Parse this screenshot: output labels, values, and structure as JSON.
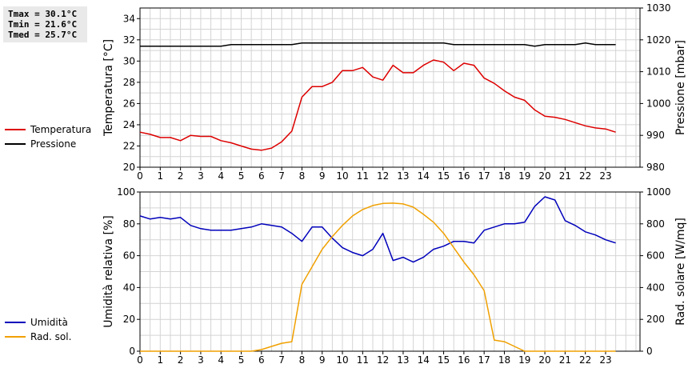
{
  "stats": {
    "tmax": "Tmax = 30.1°C",
    "tmin": "Tmin = 21.6°C",
    "tmed": "Tmed = 25.7°C"
  },
  "colors": {
    "temperature": "#dd0000",
    "pressure": "#000000",
    "humidity": "#0000bb",
    "solar": "#f0a000",
    "grid": "#d4d4d4"
  },
  "chart_data": [
    {
      "type": "line",
      "title": "",
      "x": [
        0,
        0.5,
        1,
        1.5,
        2,
        2.5,
        3,
        3.5,
        4,
        4.5,
        5,
        5.5,
        6,
        6.5,
        7,
        7.5,
        8,
        8.5,
        9,
        9.5,
        10,
        10.5,
        11,
        11.5,
        12,
        12.5,
        13,
        13.5,
        14,
        14.5,
        15,
        15.5,
        16,
        16.5,
        17,
        17.5,
        18,
        18.5,
        19,
        19.5,
        20,
        20.5,
        21,
        21.5,
        22,
        22.5,
        23,
        23.5
      ],
      "xticks": [
        "0",
        "1",
        "2",
        "3",
        "4",
        "5",
        "6",
        "7",
        "8",
        "9",
        "10",
        "11",
        "12",
        "13",
        "14",
        "15",
        "16",
        "17",
        "18",
        "19",
        "20",
        "21",
        "22",
        "23"
      ],
      "xlim": [
        0,
        24.7
      ],
      "ylabel": "Temperatura [°C]",
      "ylim": [
        20,
        35
      ],
      "yticks": [
        20,
        22,
        24,
        26,
        28,
        30,
        32,
        34
      ],
      "y2label": "Pressione [mbar]",
      "y2lim": [
        980,
        1030
      ],
      "y2ticks": [
        980,
        990,
        1000,
        1010,
        1020,
        1030
      ],
      "series": [
        {
          "name": "Temperatura",
          "axis": "left",
          "values": [
            23.3,
            23.1,
            22.8,
            22.8,
            22.5,
            23.0,
            22.9,
            22.9,
            22.5,
            22.3,
            22.0,
            21.7,
            21.6,
            21.8,
            22.4,
            23.4,
            26.6,
            27.6,
            27.6,
            28.0,
            29.1,
            29.1,
            29.4,
            28.5,
            28.2,
            29.6,
            28.9,
            28.9,
            29.6,
            30.1,
            29.9,
            29.1,
            29.8,
            29.6,
            28.4,
            27.9,
            27.2,
            26.6,
            26.3,
            25.4,
            24.8,
            24.7,
            24.5,
            24.2,
            23.9,
            23.7,
            23.6,
            23.3
          ]
        },
        {
          "name": "Pressione",
          "axis": "right",
          "values": [
            1018,
            1018,
            1018,
            1018,
            1018,
            1018,
            1018,
            1018,
            1018,
            1018.5,
            1018.5,
            1018.5,
            1018.5,
            1018.5,
            1018.5,
            1018.5,
            1019,
            1019,
            1019,
            1019,
            1019,
            1019,
            1019,
            1019,
            1019,
            1019,
            1019,
            1019,
            1019,
            1019,
            1019,
            1018.5,
            1018.5,
            1018.5,
            1018.5,
            1018.5,
            1018.5,
            1018.5,
            1018.5,
            1018,
            1018.5,
            1018.5,
            1018.5,
            1018.5,
            1019,
            1018.5,
            1018.5,
            1018.5
          ]
        }
      ]
    },
    {
      "type": "line",
      "title": "",
      "x": [
        0,
        0.5,
        1,
        1.5,
        2,
        2.5,
        3,
        3.5,
        4,
        4.5,
        5,
        5.5,
        6,
        6.5,
        7,
        7.5,
        8,
        8.5,
        9,
        9.5,
        10,
        10.5,
        11,
        11.5,
        12,
        12.5,
        13,
        13.5,
        14,
        14.5,
        15,
        15.5,
        16,
        16.5,
        17,
        17.5,
        18,
        18.5,
        19,
        19.5,
        20,
        20.5,
        21,
        21.5,
        22,
        22.5,
        23,
        23.5
      ],
      "xticks": [
        "0",
        "1",
        "2",
        "3",
        "4",
        "5",
        "6",
        "7",
        "8",
        "9",
        "10",
        "11",
        "12",
        "13",
        "14",
        "15",
        "16",
        "17",
        "18",
        "19",
        "20",
        "21",
        "22",
        "23"
      ],
      "xlim": [
        0,
        24.7
      ],
      "ylabel": "Umidità relativa [%]",
      "ylim": [
        0,
        100
      ],
      "yticks": [
        0,
        20,
        40,
        60,
        80,
        100
      ],
      "y2label": "Rad. solare [W/mq]",
      "y2lim": [
        0,
        1000
      ],
      "y2ticks": [
        0,
        200,
        400,
        600,
        800,
        1000
      ],
      "series": [
        {
          "name": "Umidità",
          "axis": "left",
          "values": [
            85,
            83,
            84,
            83,
            84,
            79,
            77,
            76,
            76,
            76,
            77,
            78,
            80,
            79,
            78,
            74,
            69,
            78,
            78,
            71,
            65,
            62,
            60,
            64,
            74,
            57,
            59,
            56,
            59,
            64,
            66,
            69,
            69,
            68,
            76,
            78,
            80,
            80,
            81,
            91,
            97,
            95,
            82,
            79,
            75,
            73,
            70,
            68
          ]
        },
        {
          "name": "Rad. sol.",
          "axis": "right",
          "values": [
            0,
            0,
            0,
            0,
            0,
            0,
            0,
            0,
            0,
            0,
            0,
            0,
            10,
            30,
            50,
            60,
            420,
            530,
            640,
            720,
            790,
            850,
            890,
            915,
            928,
            930,
            925,
            905,
            860,
            810,
            740,
            650,
            560,
            480,
            380,
            70,
            60,
            30,
            0,
            0,
            0,
            0,
            0,
            0,
            0,
            0,
            0,
            0
          ]
        }
      ]
    }
  ]
}
